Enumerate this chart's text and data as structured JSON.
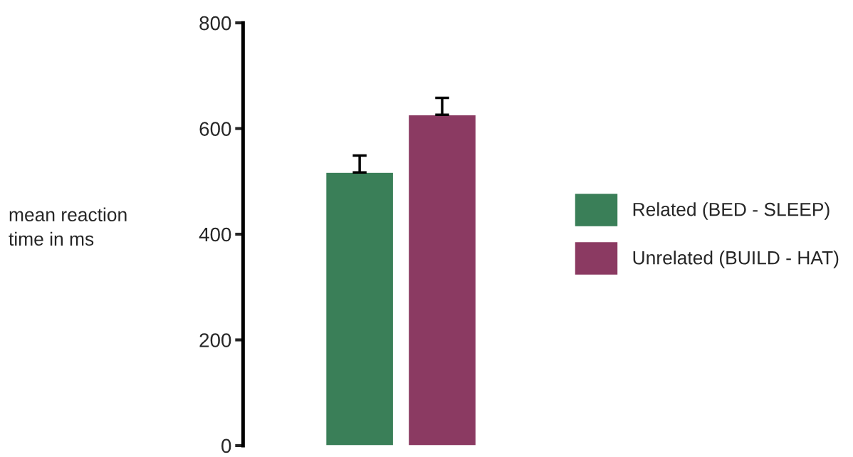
{
  "chart_data": {
    "type": "bar",
    "ylabel": "mean reaction\ntime in ms",
    "categories": [
      null
    ],
    "series": [
      {
        "name": "Related (BED - SLEEP)",
        "color": "#3a7f58",
        "values": [
          517
        ],
        "errors": [
          [
            517,
            549
          ]
        ]
      },
      {
        "name": "Unrelated (BUILD - HAT)",
        "color": "#8b3a62",
        "values": [
          626
        ],
        "errors": [
          [
            626,
            658
          ]
        ]
      }
    ],
    "ylim": [
      0,
      800
    ],
    "yticks": [
      0,
      200,
      400,
      600,
      800
    ],
    "grid": false,
    "legend": "right",
    "tick_labels": "y"
  }
}
